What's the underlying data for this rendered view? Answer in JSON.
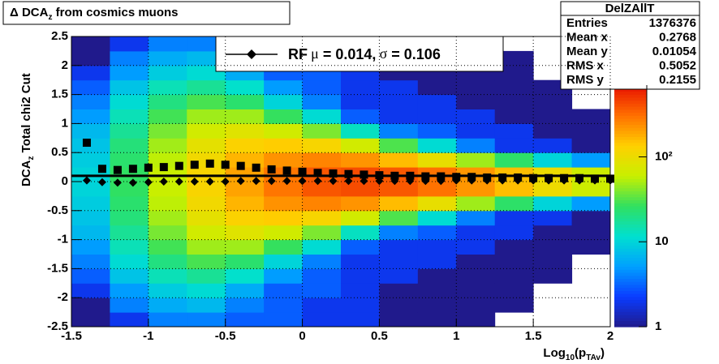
{
  "chart_data": {
    "type": "heatmap",
    "title": {
      "symbol": "Δ",
      "text": "DCA",
      "sub": "z",
      "rest": "from cosmics muons"
    },
    "x_label": {
      "text": "Log",
      "sub": "10",
      "mid": "(p",
      "sub2": "TAv",
      "end": ")"
    },
    "y_label": {
      "text": "DCA",
      "sub": "z",
      "rest": "Total chi2 Cut"
    },
    "xlim": [
      -1.5,
      2
    ],
    "ylim": [
      -2.5,
      2.5
    ],
    "xticks": [
      -1.5,
      -1,
      -0.5,
      0,
      0.5,
      1,
      1.5,
      2
    ],
    "yticks": [
      -2.5,
      -2,
      -1.5,
      -1,
      -0.5,
      0,
      0.5,
      1,
      1.5,
      2,
      2.5
    ],
    "grid": true,
    "zlim": [
      1,
      700
    ],
    "zlog": true,
    "zticks": [
      1,
      10,
      {
        "value": 100,
        "label": "10²"
      }
    ],
    "palette": [
      "#201a8c",
      "#0a3cff",
      "#00a0ff",
      "#00e0d0",
      "#30e060",
      "#c8f000",
      "#ffd000",
      "#ff7000",
      "#e81000"
    ],
    "xbins": [
      -1.5,
      -1.25,
      -1,
      -0.75,
      -0.5,
      -0.25,
      0,
      0.25,
      0.5,
      0.75,
      1,
      1.25,
      1.5,
      1.75,
      2
    ],
    "ybins": [
      -2.5,
      -2.25,
      -2,
      -1.75,
      -1.5,
      -1.25,
      -1,
      -0.75,
      -0.5,
      -0.25,
      0,
      0.25,
      0.5,
      0.75,
      1,
      1.25,
      1.5,
      1.75,
      2,
      2.25,
      2.5
    ],
    "z": [
      [
        1,
        1,
        2,
        3,
        4,
        5,
        7,
        8,
        9,
        10,
        10,
        9,
        8,
        7,
        5,
        4,
        3,
        2,
        1,
        1
      ],
      [
        2,
        4,
        5,
        8,
        11,
        14,
        18,
        22,
        24,
        26,
        26,
        24,
        22,
        18,
        14,
        11,
        8,
        5,
        4,
        2
      ],
      [
        4,
        6,
        9,
        14,
        21,
        29,
        39,
        49,
        57,
        61,
        61,
        57,
        49,
        39,
        29,
        21,
        14,
        9,
        6,
        4
      ],
      [
        4,
        7,
        11,
        18,
        30,
        48,
        69,
        91,
        111,
        122,
        122,
        111,
        91,
        69,
        48,
        30,
        18,
        11,
        7,
        4
      ],
      [
        3,
        4,
        6,
        12,
        24,
        48,
        84,
        129,
        172,
        199,
        199,
        172,
        129,
        84,
        48,
        24,
        12,
        6,
        4,
        3
      ],
      [
        3,
        3,
        3,
        5,
        10,
        27,
        68,
        140,
        230,
        294,
        294,
        230,
        140,
        68,
        27,
        10,
        5,
        3,
        3,
        3
      ],
      [
        2,
        2,
        3,
        3,
        4,
        11,
        40,
        121,
        261,
        384,
        384,
        261,
        121,
        40,
        11,
        4,
        3,
        3,
        2,
        2
      ],
      [
        2,
        2,
        2,
        2,
        2,
        3,
        13,
        69,
        228,
        419,
        419,
        228,
        69,
        13,
        3,
        2,
        2,
        2,
        2,
        2
      ],
      [
        1,
        1,
        1,
        2,
        2,
        2,
        4,
        31,
        162,
        379,
        379,
        162,
        31,
        4,
        2,
        2,
        2,
        1,
        1,
        1
      ],
      [
        1,
        1,
        1,
        1,
        2,
        2,
        3,
        11,
        95,
        304,
        304,
        95,
        11,
        3,
        2,
        2,
        1,
        1,
        1,
        1
      ],
      [
        1,
        1,
        1,
        1,
        1,
        2,
        2,
        4,
        48,
        224,
        224,
        48,
        4,
        2,
        2,
        1,
        1,
        1,
        1,
        1
      ],
      [
        0,
        1,
        1,
        1,
        1,
        1,
        2,
        2,
        25,
        159,
        159,
        25,
        2,
        2,
        1,
        1,
        1,
        1,
        1,
        0
      ],
      [
        0,
        0,
        0,
        1,
        1,
        1,
        1,
        2,
        10,
        104,
        104,
        10,
        2,
        1,
        1,
        1,
        1,
        0,
        0,
        0
      ],
      [
        0,
        0,
        0,
        0,
        0,
        1,
        1,
        1,
        5,
        65,
        65,
        5,
        1,
        1,
        1,
        0,
        0,
        0,
        0,
        0
      ]
    ],
    "reference_line": 0.1,
    "x": [
      -1.4,
      -1.3,
      -1.2,
      -1.1,
      -1.0,
      -0.9,
      -0.8,
      -0.7,
      -0.6,
      -0.5,
      -0.4,
      -0.3,
      -0.2,
      -0.1,
      0,
      0.1,
      0.2,
      0.3,
      0.4,
      0.5,
      0.6,
      0.7,
      0.8,
      0.9,
      1.0,
      1.1,
      1.2,
      1.3,
      1.4,
      1.5,
      1.6,
      1.7,
      1.8,
      1.9,
      2.0
    ],
    "series": [
      {
        "marker": "square",
        "color": "#000000",
        "values": [
          0.67,
          0.22,
          0.2,
          0.22,
          0.24,
          0.25,
          0.27,
          0.29,
          0.31,
          0.29,
          0.27,
          0.24,
          0.21,
          0.19,
          0.17,
          0.15,
          0.14,
          0.13,
          0.12,
          0.11,
          0.1,
          0.1,
          0.09,
          0.09,
          0.08,
          0.08,
          0.07,
          0.07,
          0.07,
          0.06,
          0.06,
          0.06,
          0.06,
          0.05,
          0.05
        ]
      },
      {
        "marker": "diamond",
        "color": "#000000",
        "name": {
          "pre": "RF",
          "mu": "μ",
          "mid": " =  0.014,",
          "sigma": "σ",
          "end": " =   0.106"
        },
        "values": [
          0.02,
          -0.01,
          -0.02,
          -0.02,
          -0.01,
          0,
          0,
          0,
          0,
          0,
          0.01,
          0.01,
          0.01,
          0.01,
          0.01,
          0.01,
          0.01,
          0.01,
          0.01,
          0.01,
          0.01,
          0.01,
          0.01,
          0.01,
          0.02,
          0.02,
          0.02,
          0.02,
          0.02,
          0.02,
          0.02,
          0.02,
          0.02,
          0.02,
          0.02
        ]
      }
    ],
    "stats": {
      "title": "DelZAllT",
      "rows": [
        [
          "Entries",
          1376376
        ],
        [
          "Mean x",
          0.2768
        ],
        [
          "Mean y",
          0.01054
        ],
        [
          "RMS x",
          0.5052
        ],
        [
          "RMS y",
          0.2155
        ]
      ]
    }
  }
}
